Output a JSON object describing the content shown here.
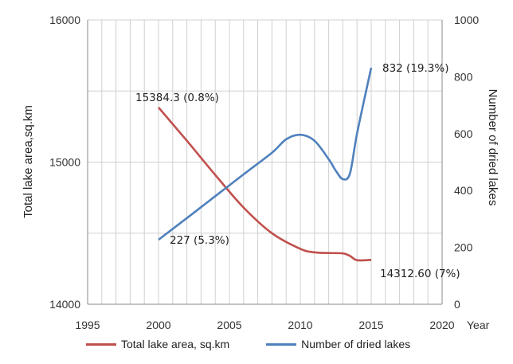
{
  "chart_data": {
    "type": "line",
    "xlabel": "Year",
    "ylabel": "Total lake area,sq.km",
    "y2label": "Number of dried lakes",
    "xlim": [
      1995,
      2020
    ],
    "xticks": [
      "1995",
      "2000",
      "2005",
      "2010",
      "2015",
      "2020"
    ],
    "ylim": [
      14000,
      16000
    ],
    "yticks": [
      "14000",
      "15000",
      "16000"
    ],
    "y2lim": [
      0,
      1000
    ],
    "y2ticks": [
      "0",
      "200",
      "400",
      "600",
      "800",
      "1000"
    ],
    "grid": true,
    "legend_position": "bottom",
    "series": [
      {
        "name": "Total lake area, sq.km",
        "axis": "left",
        "color": "#c0504d",
        "x": [
          2000,
          2002,
          2004,
          2006,
          2008,
          2010,
          2011,
          2012,
          2013,
          2013.5,
          2014,
          2015
        ],
        "y": [
          15384.3,
          15150,
          14910,
          14680,
          14500,
          14390,
          14365,
          14360,
          14358,
          14340,
          14310,
          14312.6
        ]
      },
      {
        "name": "Number of dried lakes",
        "axis": "right",
        "color": "#4f81bd",
        "x": [
          2000,
          2002,
          2004,
          2006,
          2008,
          2009,
          2010,
          2011,
          2012,
          2012.5,
          2013,
          2013.5,
          2014,
          2015
        ],
        "y": [
          227,
          303,
          380,
          457,
          533,
          580,
          596,
          575,
          510,
          470,
          440,
          460,
          600,
          832
        ]
      }
    ],
    "annotations": [
      {
        "text": "15384.3 (0.8%)",
        "x": 2000,
        "y": 15384.3,
        "axis": "left",
        "anchor": "above-left"
      },
      {
        "text": "227 (5.3%)",
        "x": 2000,
        "y": 227,
        "axis": "right",
        "anchor": "right"
      },
      {
        "text": "832 (19.3%)",
        "x": 2015,
        "y": 832,
        "axis": "right",
        "anchor": "right"
      },
      {
        "text": "14312.60 (7%)",
        "x": 2015,
        "y": 14312.6,
        "axis": "left",
        "anchor": "below-right"
      }
    ]
  }
}
